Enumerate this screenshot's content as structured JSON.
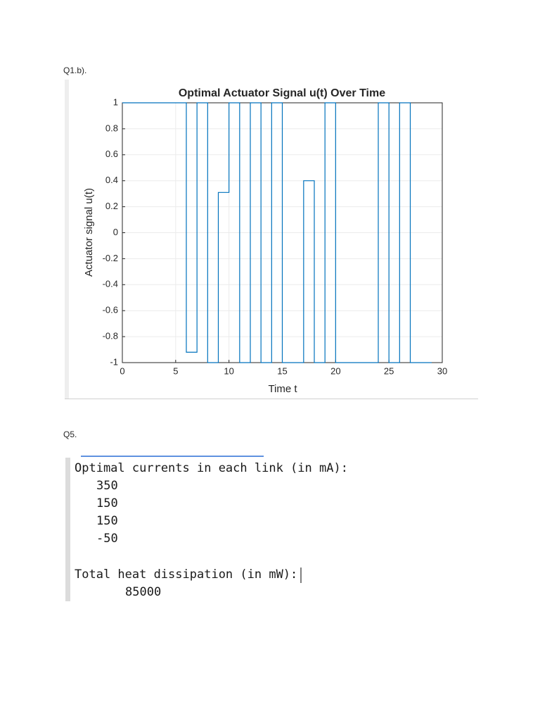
{
  "sections": [
    {
      "label": "Q1.b)."
    },
    {
      "label": "Q5."
    }
  ],
  "chart_data": {
    "type": "step",
    "title": "Optimal Actuator Signal u(t) Over Time",
    "x_label": "Time t",
    "y_label": "Actuator signal u(t)",
    "x": [
      0,
      6,
      7,
      8,
      9,
      10,
      11,
      12,
      13,
      14,
      15,
      17,
      18,
      19,
      20,
      24,
      25,
      26,
      27,
      29
    ],
    "values": [
      1,
      -0.92,
      1,
      -1,
      0.31,
      1,
      -1,
      1,
      -1,
      1,
      -1,
      0.4,
      -1,
      1,
      -1,
      1,
      -1,
      1,
      -1,
      -1
    ],
    "color": "#0072bd",
    "xlim": [
      0,
      30
    ],
    "xticks": [
      0,
      5,
      10,
      15,
      20,
      25,
      30
    ],
    "ylim": [
      -1,
      1
    ],
    "yticks": [
      -1,
      -0.8,
      -0.6,
      -0.4,
      -0.2,
      0,
      0.2,
      0.4,
      0.6,
      0.8,
      1
    ],
    "grid": true
  },
  "output": {
    "currents_heading": "Optimal currents in each link (in mA):",
    "currents": [
      350,
      150,
      150,
      -50
    ],
    "heat_heading": "Total heat dissipation (in mW):",
    "heat": 85000
  }
}
